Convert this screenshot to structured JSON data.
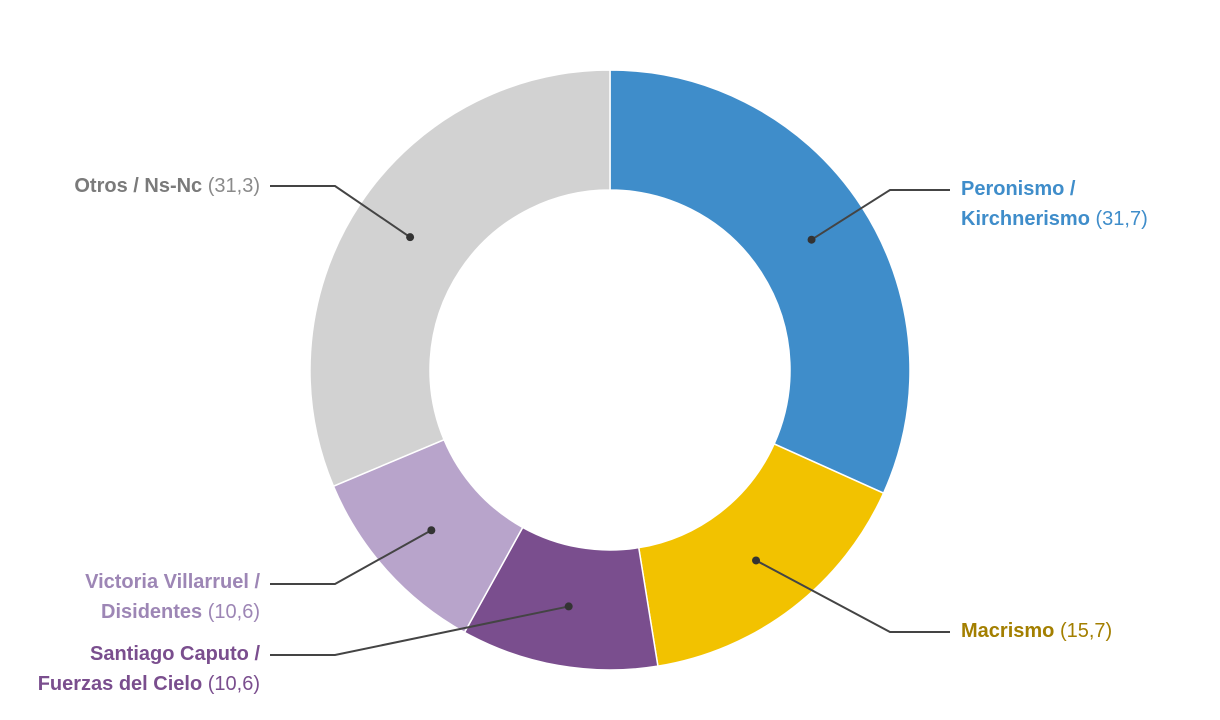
{
  "chart_data": {
    "type": "pie",
    "variant": "donut",
    "slices": [
      {
        "label_lines": [
          "Peronismo /",
          "Kirchnerismo"
        ],
        "value": 31.7,
        "value_text": "(31,7)",
        "color": "#3f8dca",
        "label_color": "#3f8dca"
      },
      {
        "label_lines": [
          "Macrismo"
        ],
        "value": 15.7,
        "value_text": "(15,7)",
        "color": "#f2c200",
        "label_color": "#a37f00"
      },
      {
        "label_lines": [
          "Santiago Caputo /",
          "Fuerzas del Cielo"
        ],
        "value": 10.6,
        "value_text": "(10,6)",
        "color": "#7a4e8e",
        "label_color": "#7a4e8e"
      },
      {
        "label_lines": [
          "Victoria Villarruel /",
          "Disidentes"
        ],
        "value": 10.6,
        "value_text": "(10,6)",
        "color": "#b8a4cb",
        "label_color": "#9d86b5"
      },
      {
        "label_lines": [
          "Otros / Ns-Nc"
        ],
        "value": 31.3,
        "value_text": "(31,3)",
        "color": "#d2d2d2",
        "label_color": "#7a7a7a"
      }
    ],
    "value_color": "#8a8a8a",
    "leader_color": "#444444"
  }
}
